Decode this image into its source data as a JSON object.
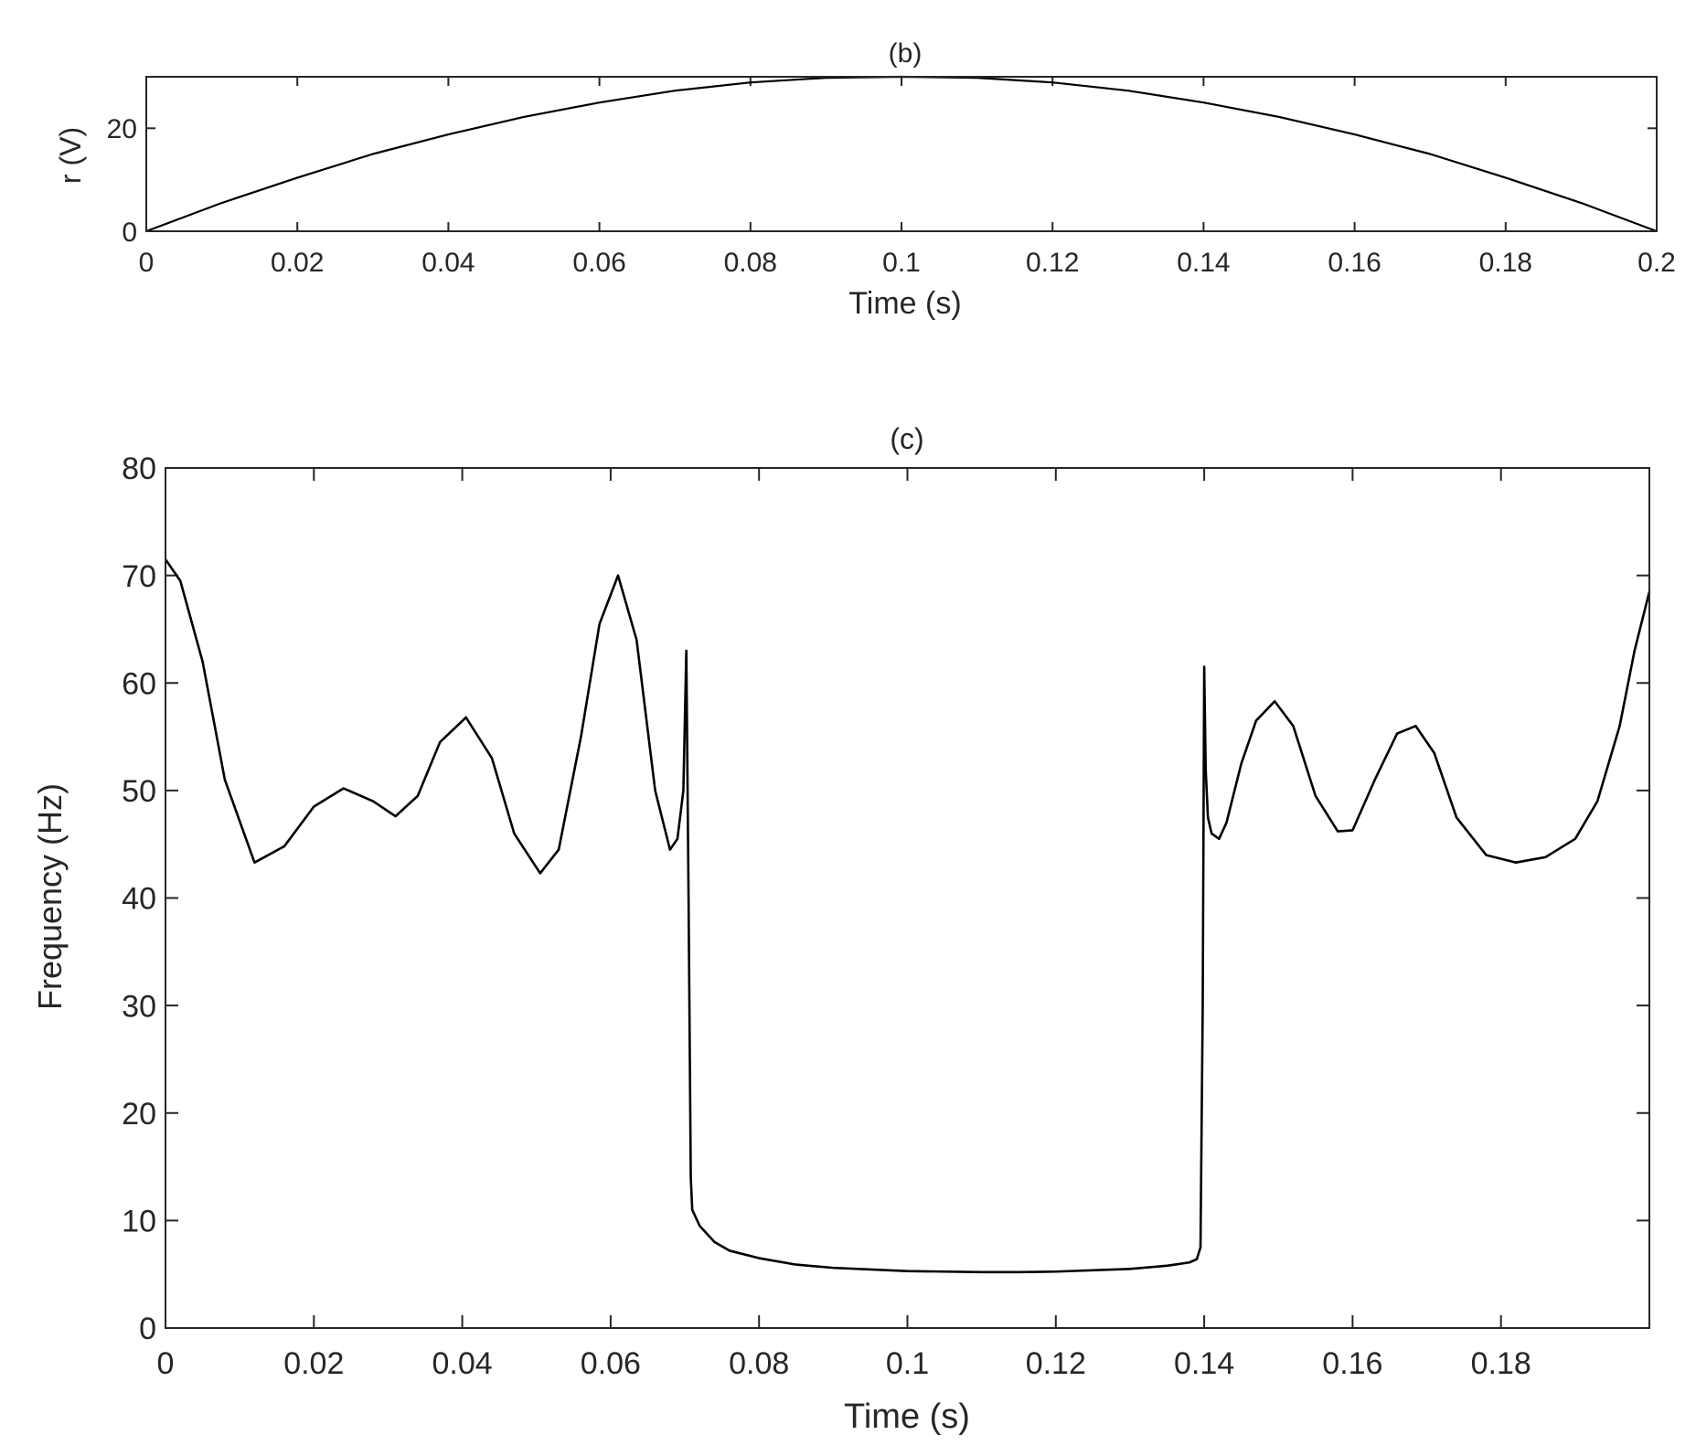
{
  "chart_data": [
    {
      "type": "line",
      "title": "(b)",
      "xlabel": "Time (s)",
      "ylabel": "r (V)",
      "xlim": [
        0,
        0.2
      ],
      "ylim": [
        0,
        30
      ],
      "xticks": [
        "0",
        "0.02",
        "0.04",
        "0.06",
        "0.08",
        "0.1",
        "0.12",
        "0.14",
        "0.16",
        "0.18",
        "0.2"
      ],
      "yticks": [
        "0",
        "20"
      ],
      "grid": false,
      "series": [
        {
          "x": [
            0,
            0.01,
            0.02,
            0.03,
            0.04,
            0.05,
            0.06,
            0.07,
            0.08,
            0.09,
            0.1,
            0.11,
            0.12,
            0.13,
            0.14,
            0.15,
            0.16,
            0.17,
            0.18,
            0.19,
            0.2
          ],
          "y": [
            0,
            5.5,
            10.4,
            15.0,
            18.8,
            22.2,
            25.0,
            27.3,
            28.9,
            29.8,
            30.0,
            29.8,
            28.9,
            27.3,
            25.0,
            22.2,
            18.8,
            15.0,
            10.4,
            5.5,
            0
          ],
          "color": "#000000"
        }
      ]
    },
    {
      "type": "line",
      "title": "(c)",
      "xlabel": "Time (s)",
      "ylabel": "Frequency (Hz)",
      "xlim": [
        0,
        0.2
      ],
      "ylim": [
        0,
        80
      ],
      "xticks": [
        "0",
        "0.02",
        "0.04",
        "0.06",
        "0.08",
        "0.1",
        "0.12",
        "0.14",
        "0.16",
        "0.18"
      ],
      "yticks": [
        "0",
        "10",
        "20",
        "30",
        "40",
        "50",
        "60",
        "70",
        "80"
      ],
      "grid": false,
      "series": [
        {
          "x": [
            0,
            0.002,
            0.005,
            0.008,
            0.012,
            0.016,
            0.02,
            0.024,
            0.028,
            0.031,
            0.034,
            0.037,
            0.0405,
            0.044,
            0.047,
            0.0505,
            0.053,
            0.056,
            0.0585,
            0.061,
            0.0635,
            0.066,
            0.068,
            0.069,
            0.0698,
            0.0702,
            0.0705,
            0.0708,
            0.071,
            0.072,
            0.074,
            0.076,
            0.08,
            0.085,
            0.09,
            0.1,
            0.11,
            0.115,
            0.12,
            0.13,
            0.135,
            0.138,
            0.139,
            0.1395,
            0.1398,
            0.14,
            0.1402,
            0.1405,
            0.141,
            0.142,
            0.143,
            0.145,
            0.147,
            0.1495,
            0.152,
            0.155,
            0.158,
            0.16,
            0.163,
            0.166,
            0.1685,
            0.171,
            0.174,
            0.178,
            0.182,
            0.186,
            0.19,
            0.193,
            0.196,
            0.198,
            0.2
          ],
          "y": [
            71.5,
            69.5,
            62,
            51,
            43.3,
            44.8,
            48.5,
            50.2,
            49,
            47.6,
            49.5,
            54.5,
            56.8,
            53,
            46,
            42.3,
            44.5,
            55,
            65.5,
            70,
            64,
            50,
            44.5,
            45.5,
            50,
            63,
            40,
            14,
            11,
            9.5,
            8,
            7.2,
            6.5,
            5.9,
            5.6,
            5.3,
            5.2,
            5.2,
            5.25,
            5.5,
            5.8,
            6.1,
            6.4,
            7.5,
            30,
            61.5,
            52,
            47.5,
            46,
            45.5,
            47,
            52.5,
            56.5,
            58.3,
            56,
            49.5,
            46.2,
            46.3,
            51,
            55.3,
            56,
            53.5,
            47.5,
            44,
            43.3,
            43.8,
            45.5,
            49,
            56,
            63,
            68.5
          ],
          "color": "#000000"
        }
      ]
    }
  ]
}
